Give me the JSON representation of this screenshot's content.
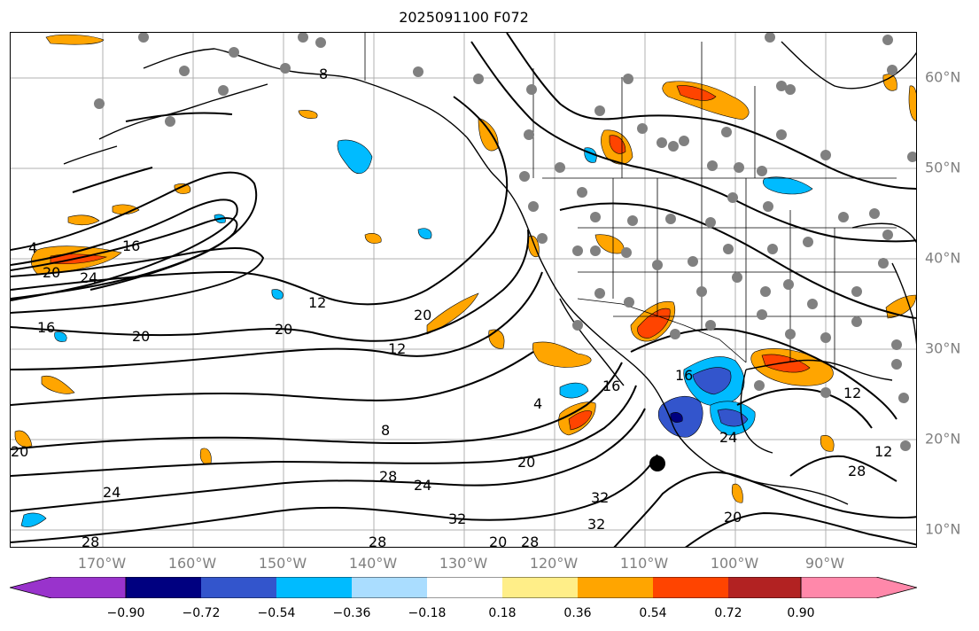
{
  "title": "2025091100 F072",
  "map": {
    "projection": "cylindrical",
    "extent": {
      "lon_min": -180,
      "lon_max": -80,
      "lat_min": 7,
      "lat_max": 64
    },
    "longitude_labels": [
      "170°W",
      "160°W",
      "150°W",
      "140°W",
      "130°W",
      "120°W",
      "110°W",
      "100°W",
      "90°W"
    ],
    "latitude_labels": [
      "60°N",
      "50°N",
      "40°N",
      "30°N",
      "20°N",
      "10°N"
    ],
    "gridlines": true,
    "contour_color": "#000000",
    "contour_labels": [
      "8",
      "4",
      "16",
      "20",
      "24",
      "12",
      "20",
      "20",
      "16",
      "20",
      "12",
      "12",
      "20",
      "4",
      "16",
      "8",
      "20",
      "28",
      "24",
      "32",
      "28",
      "24",
      "32",
      "28",
      "20",
      "32",
      "28",
      "24",
      "20",
      "28",
      "12",
      "16"
    ],
    "station_marker_color": "#808080",
    "highlight_marker": {
      "lon": -109,
      "lat": 17.5,
      "color": "#000000"
    }
  },
  "colorbar": {
    "extend": "both",
    "under_color": "#9933cc",
    "over_color": "#ff88aa",
    "colors": [
      "#000080",
      "#3355cc",
      "#00bbff",
      "#aaddff",
      "#ffffff",
      "#ffee88",
      "#ffa500",
      "#ff4400",
      "#b22222"
    ],
    "ticks": [
      "−0.90",
      "−0.72",
      "−0.54",
      "−0.36",
      "−0.18",
      "0.18",
      "0.36",
      "0.54",
      "0.72",
      "0.90"
    ]
  }
}
